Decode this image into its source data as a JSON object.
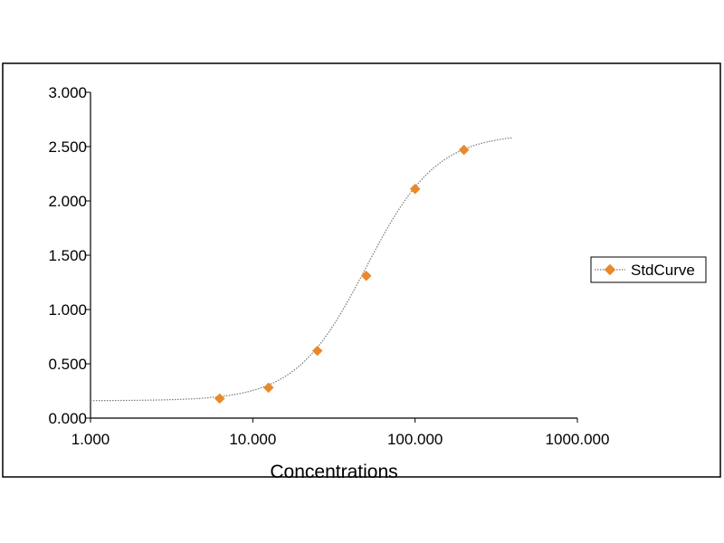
{
  "chart_data": {
    "type": "scatter",
    "title": "",
    "xlabel": "Concentrations",
    "ylabel": "",
    "x_scale": "log",
    "xlim": [
      1,
      1000
    ],
    "ylim": [
      0,
      3
    ],
    "x_ticks": [
      "1.000",
      "10.000",
      "100.000",
      "1000.000"
    ],
    "x_tick_values": [
      1,
      10,
      100,
      1000
    ],
    "y_ticks": [
      "0.000",
      "0.500",
      "1.000",
      "1.500",
      "2.000",
      "2.500",
      "3.000"
    ],
    "y_tick_values": [
      0,
      0.5,
      1,
      1.5,
      2,
      2.5,
      3
    ],
    "grid": false,
    "legend_position": "right",
    "series": [
      {
        "name": "StdCurve",
        "marker": "diamond",
        "color": "#E8892B",
        "x": [
          6.25,
          12.5,
          25,
          50,
          100,
          200
        ],
        "y": [
          0.18,
          0.28,
          0.62,
          1.31,
          2.11,
          2.47
        ]
      }
    ],
    "fit_curve": {
      "model": "4PL",
      "style": "dotted",
      "color": "#7a7a7a",
      "bottom": 0.16,
      "top": 2.62,
      "ec50": 50,
      "hill": 2.0,
      "x_range": [
        1,
        400
      ]
    }
  }
}
